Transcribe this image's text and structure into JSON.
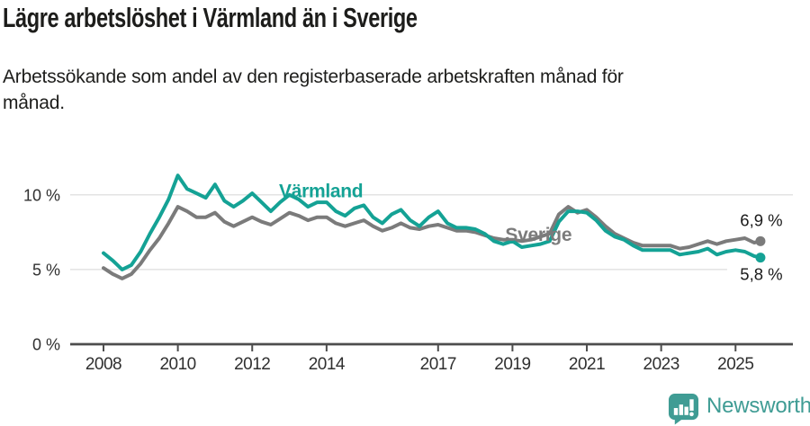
{
  "header": {
    "title": "Lägre arbetslöshet i Värmland än i Sverige",
    "subtitle_lines": [
      "Arbetssökande som andel av den registerbaserade arbetskraften månad för",
      "månad."
    ]
  },
  "footer": {
    "brand": "Newsworthy",
    "logo_icon": "bar-chart-speech-bubble-icon",
    "brand_color": "#3f9c94"
  },
  "chart_data": {
    "type": "line",
    "unit": "%",
    "x_label": "",
    "y_label": "",
    "xlim": [
      2007.1,
      2026.5
    ],
    "ylim": [
      0,
      12.5
    ],
    "grid": true,
    "grid_values": [
      5,
      10
    ],
    "x_ticks": [
      2008,
      2010,
      2012,
      2014,
      2017,
      2019,
      2021,
      2023,
      2025
    ],
    "y_ticks": [
      {
        "value": 0,
        "label": "0 %"
      },
      {
        "value": 5,
        "label": "5 %"
      },
      {
        "value": 10,
        "label": "10 %"
      }
    ],
    "x": [
      2008.0,
      2008.25,
      2008.5,
      2008.75,
      2009.0,
      2009.25,
      2009.5,
      2009.75,
      2010.0,
      2010.25,
      2010.5,
      2010.75,
      2011.0,
      2011.25,
      2011.5,
      2011.75,
      2012.0,
      2012.25,
      2012.5,
      2012.75,
      2013.0,
      2013.25,
      2013.5,
      2013.75,
      2014.0,
      2014.25,
      2014.5,
      2014.75,
      2015.0,
      2015.25,
      2015.5,
      2015.75,
      2016.0,
      2016.25,
      2016.5,
      2016.75,
      2017.0,
      2017.25,
      2017.5,
      2017.75,
      2018.0,
      2018.25,
      2018.5,
      2018.75,
      2019.0,
      2019.25,
      2019.5,
      2019.75,
      2020.0,
      2020.25,
      2020.5,
      2020.75,
      2021.0,
      2021.25,
      2021.5,
      2021.75,
      2022.0,
      2022.25,
      2022.5,
      2022.75,
      2023.0,
      2023.25,
      2023.5,
      2023.75,
      2024.0,
      2024.25,
      2024.5,
      2024.75,
      2025.0,
      2025.25,
      2025.5,
      2025.67
    ],
    "series": [
      {
        "name": "Sverige",
        "color": "#7b7b7b",
        "end_label": "6,9 %",
        "end_label_side": "above",
        "label_pos": {
          "year": 2019.7,
          "value": 7.35
        },
        "values": [
          5.1,
          4.7,
          4.4,
          4.7,
          5.4,
          6.3,
          7.1,
          8.1,
          9.2,
          8.9,
          8.5,
          8.5,
          8.8,
          8.2,
          7.9,
          8.2,
          8.5,
          8.2,
          8.0,
          8.4,
          8.8,
          8.6,
          8.3,
          8.5,
          8.5,
          8.1,
          7.9,
          8.1,
          8.3,
          7.9,
          7.6,
          7.8,
          8.1,
          7.8,
          7.7,
          7.9,
          8.0,
          7.8,
          7.6,
          7.6,
          7.5,
          7.3,
          7.1,
          7.0,
          7.0,
          6.9,
          7.0,
          7.2,
          7.4,
          8.7,
          9.2,
          8.8,
          9.0,
          8.5,
          7.9,
          7.4,
          7.1,
          6.8,
          6.6,
          6.6,
          6.6,
          6.6,
          6.4,
          6.5,
          6.7,
          6.9,
          6.7,
          6.9,
          7.0,
          7.1,
          6.8,
          6.9
        ]
      },
      {
        "name": "Värmland",
        "color": "#14a295",
        "end_label": "5,8 %",
        "end_label_side": "below",
        "label_pos": {
          "year": 2013.85,
          "value": 10.25
        },
        "values": [
          6.1,
          5.6,
          5.0,
          5.3,
          6.2,
          7.4,
          8.5,
          9.7,
          11.3,
          10.4,
          10.1,
          9.8,
          10.7,
          9.6,
          9.2,
          9.6,
          10.1,
          9.5,
          8.9,
          9.5,
          10.0,
          9.7,
          9.2,
          9.5,
          9.5,
          8.9,
          8.6,
          9.1,
          9.3,
          8.5,
          8.1,
          8.7,
          9.0,
          8.3,
          7.9,
          8.5,
          8.9,
          8.1,
          7.8,
          7.8,
          7.7,
          7.4,
          6.9,
          6.7,
          6.9,
          6.5,
          6.6,
          6.7,
          6.9,
          8.2,
          8.9,
          8.9,
          8.8,
          8.3,
          7.6,
          7.2,
          7.0,
          6.6,
          6.3,
          6.3,
          6.3,
          6.3,
          6.0,
          6.1,
          6.2,
          6.4,
          6.0,
          6.2,
          6.3,
          6.2,
          5.9,
          5.8
        ]
      }
    ],
    "colors": {
      "grid": "#e3e3e3",
      "axis": "#4d4d4d",
      "tick_label": "#303030",
      "annotation": "#1a1a1a"
    }
  }
}
